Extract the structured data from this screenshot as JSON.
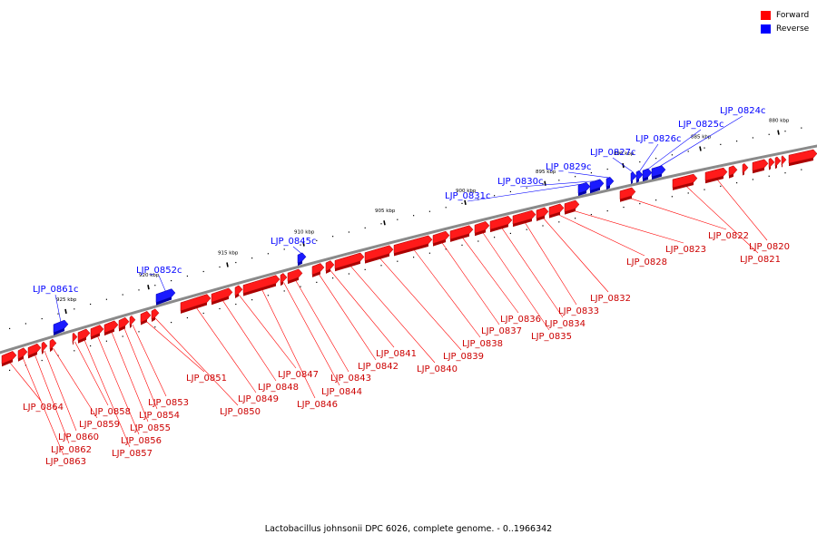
{
  "legend": {
    "forward": {
      "label": "Forward",
      "color": "#ff0000"
    },
    "reverse": {
      "label": "Reverse",
      "color": "#0000ff"
    }
  },
  "caption": "Lactobacillus johnsonii DPC 6026, complete genome. - 0..1966342",
  "ticks": [
    {
      "kbp": 925,
      "label": "925 kbp"
    },
    {
      "kbp": 920,
      "label": "920 kbp"
    },
    {
      "kbp": 915,
      "label": "915 kbp"
    },
    {
      "kbp": 910,
      "label": "910 kbp"
    },
    {
      "kbp": 905,
      "label": "905 kbp"
    },
    {
      "kbp": 900,
      "label": "900 kbp"
    },
    {
      "kbp": 895,
      "label": "895 kbp"
    },
    {
      "kbp": 890,
      "label": "890 kbp"
    },
    {
      "kbp": 885,
      "label": "885 kbp"
    },
    {
      "kbp": 880,
      "label": "880 kbp"
    }
  ],
  "reverse_genes": [
    "LJP_0861c",
    "LJP_0852c",
    "LJP_0845c",
    "LJP_0831c",
    "LJP_0830c",
    "LJP_0829c",
    "LJP_0827c",
    "LJP_0826c",
    "LJP_0825c",
    "LJP_0824c"
  ],
  "forward_genes": [
    "LJP_0864",
    "LJP_0863",
    "LJP_0862",
    "LJP_0860",
    "LJP_0859",
    "LJP_0858",
    "LJP_0857",
    "LJP_0856",
    "LJP_0855",
    "LJP_0854",
    "LJP_0853",
    "LJP_0851",
    "LJP_0850",
    "LJP_0849",
    "LJP_0848",
    "LJP_0847",
    "LJP_0846",
    "LJP_0844",
    "LJP_0843",
    "LJP_0842",
    "LJP_0841",
    "LJP_0840",
    "LJP_0839",
    "LJP_0838",
    "LJP_0837",
    "LJP_0836",
    "LJP_0835",
    "LJP_0834",
    "LJP_0833",
    "LJP_0832",
    "LJP_0828",
    "LJP_0823",
    "LJP_0822",
    "LJP_0821",
    "LJP_0820"
  ]
}
